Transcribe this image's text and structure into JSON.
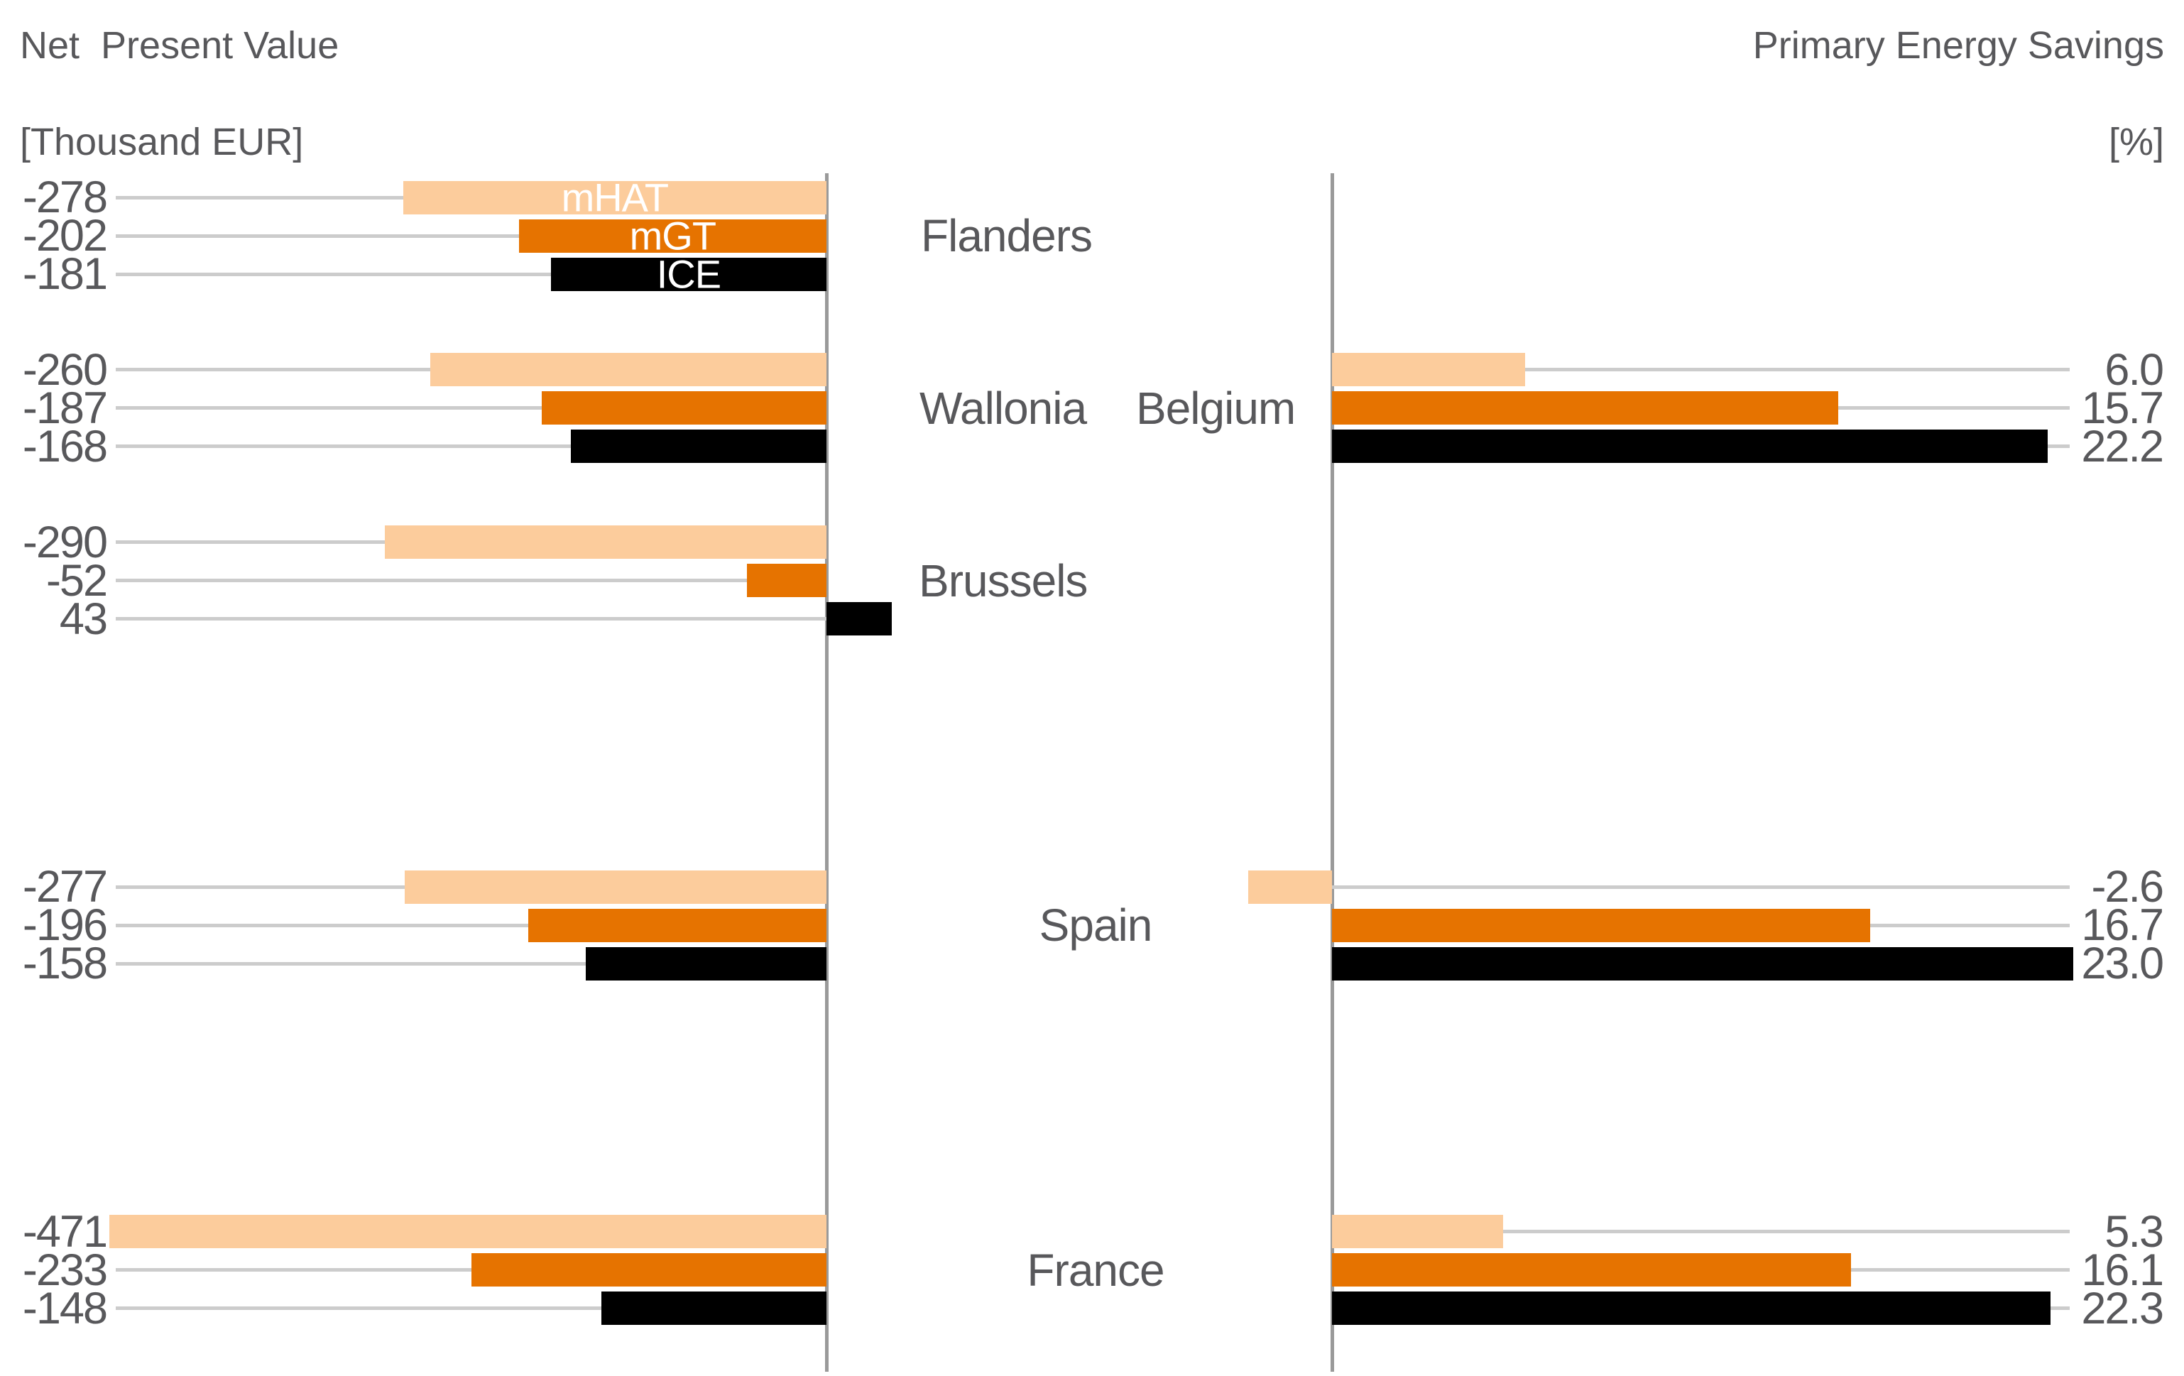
{
  "titles": {
    "left_line1": "Net  Present Value",
    "left_line2": "[Thousand EUR]",
    "right_line1": "Primary Energy Savings",
    "right_line2": "[%]"
  },
  "colors": {
    "mHAT": "#fccc9c",
    "mGT": "#e67300",
    "ICE": "#000000",
    "axis": "#9a9a9a",
    "gridline": "#cccccc",
    "text": "#58585b",
    "bar_label_text": "#ffffff"
  },
  "region_labels": [
    {
      "id": "flanders",
      "text": "Flanders"
    },
    {
      "id": "wallonia",
      "text": "Wallonia"
    },
    {
      "id": "belgium",
      "text": "Belgium"
    },
    {
      "id": "brussels",
      "text": "Brussels"
    },
    {
      "id": "spain",
      "text": "Spain"
    },
    {
      "id": "france",
      "text": "France"
    }
  ],
  "chart_data": {
    "type": "bar",
    "orientation": "horizontal-diverging",
    "series_legend": [
      "mHAT",
      "mGT",
      "ICE"
    ],
    "legend_position": "inside-first-group-bars",
    "grid": "per-bar leader lines",
    "panels": [
      {
        "id": "npv",
        "title": "Net Present Value [Thousand EUR]",
        "unit": "Thousand EUR",
        "side": "left",
        "value_labels_position": "far-left",
        "xlim": [
          -500,
          50
        ],
        "groups": [
          {
            "region": "Flanders",
            "bars": [
              {
                "series": "mHAT",
                "value": -278,
                "label": "-278",
                "show_series_name_in_bar": true
              },
              {
                "series": "mGT",
                "value": -202,
                "label": "-202",
                "show_series_name_in_bar": true
              },
              {
                "series": "ICE",
                "value": -181,
                "label": "-181",
                "show_series_name_in_bar": true
              }
            ]
          },
          {
            "region": "Wallonia",
            "bars": [
              {
                "series": "mHAT",
                "value": -260,
                "label": "-260"
              },
              {
                "series": "mGT",
                "value": -187,
                "label": "-187"
              },
              {
                "series": "ICE",
                "value": -168,
                "label": "-168"
              }
            ]
          },
          {
            "region": "Brussels",
            "bars": [
              {
                "series": "mHAT",
                "value": -290,
                "label": "-290"
              },
              {
                "series": "mGT",
                "value": -52,
                "label": "-52"
              },
              {
                "series": "ICE",
                "value": 43,
                "label": "43"
              }
            ]
          },
          {
            "region": "Spain",
            "bars": [
              {
                "series": "mHAT",
                "value": -277,
                "label": "-277"
              },
              {
                "series": "mGT",
                "value": -196,
                "label": "-196"
              },
              {
                "series": "ICE",
                "value": -158,
                "label": "-158"
              }
            ]
          },
          {
            "region": "France",
            "bars": [
              {
                "series": "mHAT",
                "value": -471,
                "label": "-471"
              },
              {
                "series": "mGT",
                "value": -233,
                "label": "-233"
              },
              {
                "series": "ICE",
                "value": -148,
                "label": "-148"
              }
            ]
          }
        ]
      },
      {
        "id": "pes",
        "title": "Primary Energy Savings [%]",
        "unit": "%",
        "side": "right",
        "value_labels_position": "far-right",
        "xlim": [
          -5,
          25
        ],
        "groups": [
          {
            "region": "Belgium",
            "bars": [
              {
                "series": "mHAT",
                "value": 6.0,
                "label": "6.0"
              },
              {
                "series": "mGT",
                "value": 15.7,
                "label": "15.7"
              },
              {
                "series": "ICE",
                "value": 22.2,
                "label": "22.2"
              }
            ]
          },
          {
            "region": "Spain",
            "bars": [
              {
                "series": "mHAT",
                "value": -2.6,
                "label": "-2.6"
              },
              {
                "series": "mGT",
                "value": 16.7,
                "label": "16.7"
              },
              {
                "series": "ICE",
                "value": 23.0,
                "label": "23.0"
              }
            ]
          },
          {
            "region": "France",
            "bars": [
              {
                "series": "mHAT",
                "value": 5.3,
                "label": "5.3"
              },
              {
                "series": "mGT",
                "value": 16.1,
                "label": "16.1"
              },
              {
                "series": "ICE",
                "value": 22.3,
                "label": "22.3"
              }
            ]
          }
        ]
      }
    ]
  }
}
